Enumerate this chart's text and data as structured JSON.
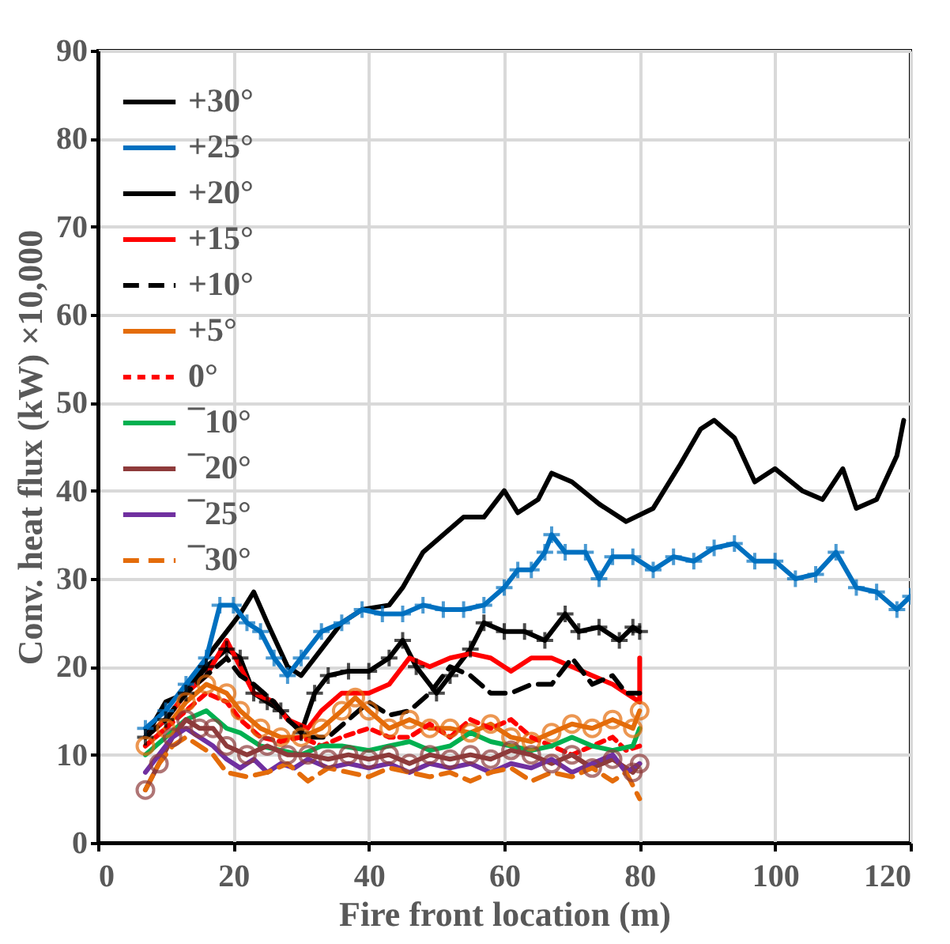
{
  "chart_data": {
    "type": "line",
    "xlabel": "Fire front location (m)",
    "ylabel": "Conv. heat flux (kW) ×10,000",
    "xlim": [
      0,
      120
    ],
    "ylim": [
      0,
      90
    ],
    "xticks": [
      0,
      20,
      40,
      60,
      80,
      100,
      120
    ],
    "yticks": [
      0,
      10,
      20,
      30,
      40,
      50,
      60,
      70,
      80,
      90
    ],
    "grid": true,
    "legend": "top left",
    "series": [
      {
        "name": "+30°",
        "color": "#000000",
        "line_style": "solid",
        "marker": "none",
        "x": [
          7,
          10,
          13,
          16,
          19,
          21,
          23,
          25,
          28,
          30,
          33,
          36,
          39,
          43,
          45,
          48,
          51,
          54,
          57,
          60,
          62,
          65,
          67,
          70,
          74,
          78,
          82,
          86,
          89,
          91,
          94,
          97,
          100,
          104,
          107,
          110,
          112,
          115,
          118,
          119
        ],
        "values": [
          12,
          16,
          17,
          21,
          24,
          26,
          28.5,
          25,
          20,
          19,
          22,
          25,
          26.5,
          27,
          29,
          33,
          35,
          37,
          37,
          40,
          37.5,
          39,
          42,
          41,
          38.5,
          36.5,
          38,
          43,
          47,
          48,
          46,
          41,
          42.5,
          40,
          39,
          42.5,
          38,
          39,
          44,
          48
        ]
      },
      {
        "name": "+25°",
        "color": "#0070c0",
        "line_style": "solid",
        "marker": "cross",
        "x": [
          7,
          10,
          13,
          16,
          18,
          20,
          22,
          24,
          26,
          28,
          30,
          33,
          36,
          39,
          42,
          45,
          48,
          51,
          54,
          57,
          60,
          62,
          64,
          66,
          67,
          69,
          72,
          74,
          76,
          79,
          82,
          85,
          88,
          91,
          94,
          97,
          100,
          103,
          106,
          109,
          112,
          115,
          118,
          120
        ],
        "values": [
          13,
          15,
          18,
          21,
          27,
          27,
          25,
          24,
          21,
          19,
          21,
          24,
          25,
          26.5,
          26,
          26,
          27,
          26.5,
          26.5,
          27,
          29,
          31,
          31,
          33,
          35,
          33,
          33,
          30,
          32.5,
          32.5,
          31,
          32.5,
          32,
          33.5,
          34,
          32,
          32,
          30,
          30.5,
          33,
          29,
          28.5,
          26.5,
          28
        ]
      },
      {
        "name": "+20°",
        "color": "#000000",
        "line_style": "solid",
        "marker": "cross",
        "x": [
          7,
          10,
          13,
          16,
          19,
          21,
          23,
          25,
          27,
          30,
          32,
          34,
          37,
          40,
          43,
          45,
          47,
          50,
          52,
          55,
          57,
          60,
          63,
          66,
          69,
          71,
          74,
          77,
          79,
          80
        ],
        "values": [
          12,
          14,
          17,
          20,
          22,
          21,
          17,
          16,
          15,
          12.5,
          17,
          19,
          19.5,
          19.5,
          21,
          23,
          20,
          17,
          19,
          22,
          25,
          24,
          24,
          23,
          26,
          24,
          24.5,
          23,
          24.5,
          24
        ]
      },
      {
        "name": "+15°",
        "color": "#ff0000",
        "line_style": "solid",
        "marker": "none",
        "x": [
          7,
          10,
          13,
          16,
          19,
          21,
          23,
          26,
          28,
          31,
          33,
          36,
          40,
          43,
          46,
          49,
          52,
          55,
          58,
          61,
          64,
          67,
          70,
          73,
          76,
          78,
          80,
          80
        ],
        "values": [
          12,
          14,
          17,
          19,
          23,
          20,
          17,
          16,
          14,
          13,
          15,
          17,
          17,
          18,
          21,
          20,
          21,
          21.5,
          21,
          19.5,
          21,
          21,
          20,
          19,
          18,
          17,
          16,
          21
        ]
      },
      {
        "name": "+10°",
        "color": "#000000",
        "line_style": "dashed",
        "marker": "none",
        "x": [
          7,
          10,
          13,
          16,
          19,
          21,
          23,
          26,
          28,
          31,
          34,
          37,
          40,
          43,
          46,
          49,
          52,
          55,
          58,
          61,
          64,
          67,
          70,
          73,
          76,
          78,
          80
        ],
        "values": [
          12,
          14,
          17,
          19,
          21,
          19,
          18,
          16,
          14,
          12,
          12,
          14,
          16,
          14.5,
          15,
          17,
          20,
          19,
          17,
          17,
          18,
          18,
          21,
          18,
          19,
          17,
          17
        ]
      },
      {
        "name": "+5°",
        "color": "#e46c0a",
        "line_style": "solid",
        "marker": "circle",
        "x": [
          7,
          10,
          13,
          16,
          19,
          21,
          24,
          27,
          30,
          33,
          36,
          38,
          40,
          43,
          46,
          49,
          52,
          55,
          58,
          61,
          64,
          67,
          70,
          73,
          76,
          79,
          80
        ],
        "values": [
          11,
          13,
          16,
          18,
          17,
          15,
          13,
          12,
          12,
          13,
          15,
          16.5,
          15,
          13,
          14,
          13,
          13,
          12.5,
          13.5,
          12,
          11.5,
          12.5,
          13.5,
          13,
          14,
          13,
          15
        ]
      },
      {
        "name": "0°",
        "color": "#ff0000",
        "line_style": "dotted",
        "marker": "none",
        "x": [
          7,
          10,
          13,
          16,
          19,
          21,
          24,
          27,
          30,
          33,
          36,
          40,
          43,
          46,
          49,
          52,
          55,
          58,
          61,
          64,
          67,
          70,
          73,
          76,
          78,
          80
        ],
        "values": [
          11,
          13,
          15,
          17,
          16,
          14,
          12,
          11.5,
          12,
          11,
          12,
          13,
          12,
          12,
          13.5,
          12,
          14,
          13,
          14,
          12,
          11,
          10,
          11,
          12,
          10.5,
          11
        ]
      },
      {
        "name": "¯10°",
        "color": "#00b050",
        "line_style": "solid",
        "marker": "none",
        "x": [
          7,
          10,
          13,
          16,
          19,
          21,
          24,
          27,
          30,
          33,
          36,
          40,
          43,
          46,
          49,
          52,
          55,
          58,
          61,
          64,
          67,
          70,
          73,
          76,
          79,
          80
        ],
        "values": [
          10,
          12,
          14,
          15,
          13,
          12.5,
          11,
          10.5,
          10,
          11,
          11,
          10.5,
          11,
          11.5,
          10.5,
          11,
          12.5,
          11.5,
          11,
          10.5,
          11,
          12,
          11,
          10.5,
          11,
          13
        ]
      },
      {
        "name": "¯20°",
        "color": "#8e3b3b",
        "line_style": "solid",
        "marker": "circle",
        "x": [
          7,
          9,
          11,
          13,
          15,
          17,
          19,
          22,
          25,
          28,
          31,
          34,
          37,
          40,
          43,
          46,
          49,
          52,
          55,
          58,
          61,
          64,
          67,
          70,
          73,
          76,
          79,
          80
        ],
        "values": [
          6,
          9,
          12,
          14,
          13,
          13,
          11,
          10,
          11,
          10,
          10,
          9.5,
          10,
          9.5,
          10,
          9,
          10,
          9.5,
          10,
          9.5,
          10.5,
          10,
          9,
          10,
          8.5,
          9.5,
          8,
          9
        ]
      },
      {
        "name": "¯25°",
        "color": "#7030a0",
        "line_style": "solid",
        "marker": "none",
        "x": [
          7,
          9,
          11,
          13,
          15,
          17,
          19,
          21,
          23,
          25,
          27,
          29,
          31,
          34,
          37,
          40,
          43,
          46,
          49,
          52,
          55,
          58,
          61,
          64,
          67,
          70,
          73,
          76,
          78,
          80
        ],
        "values": [
          8,
          10,
          12,
          13,
          12,
          11,
          9.5,
          8.5,
          9.5,
          8,
          9,
          8.5,
          9.5,
          8.5,
          9,
          8.5,
          9,
          8,
          9,
          8.5,
          9,
          8,
          9,
          8.5,
          9.5,
          8,
          9,
          10,
          8,
          9
        ]
      },
      {
        "name": "¯30°",
        "color": "#e46c0a",
        "line_style": "dashed",
        "marker": "none",
        "x": [
          7,
          9,
          11,
          13,
          15,
          17,
          19,
          22,
          25,
          28,
          31,
          34,
          37,
          40,
          43,
          46,
          49,
          52,
          55,
          58,
          61,
          64,
          67,
          70,
          73,
          76,
          78,
          80
        ],
        "values": [
          6,
          9,
          11,
          12,
          11,
          10,
          8,
          7.5,
          8,
          9,
          7,
          8.5,
          8,
          7.5,
          8.5,
          8,
          7.5,
          8,
          7,
          8,
          8.5,
          7,
          8,
          7.5,
          8.5,
          7,
          8,
          5
        ]
      }
    ]
  }
}
